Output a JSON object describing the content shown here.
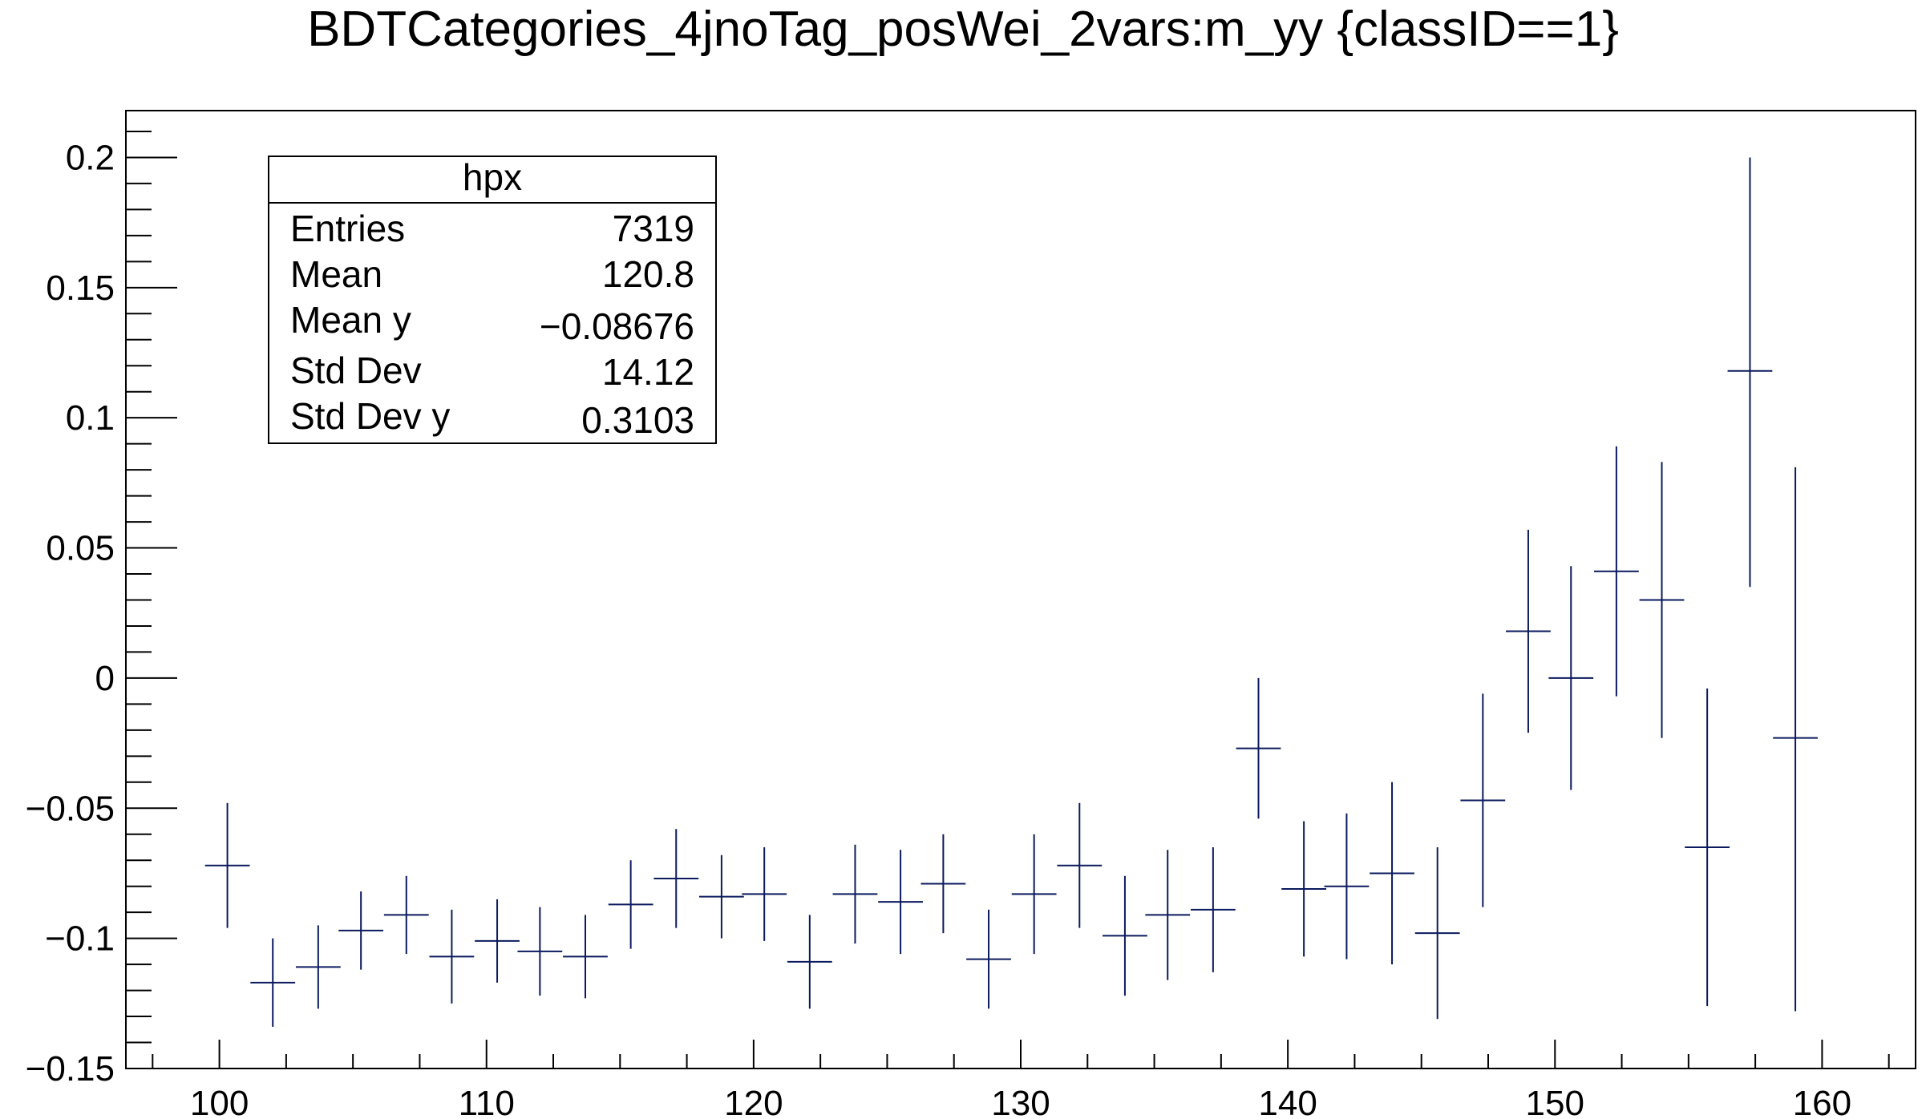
{
  "chart_data": {
    "type": "scatter",
    "title": "BDTCategories_4jnoTag_posWei_2vars:m_yy {classID==1}",
    "xlabel": "",
    "ylabel": "",
    "xlim": [
      96.5,
      163.5
    ],
    "ylim": [
      -0.15,
      0.218
    ],
    "grid": false,
    "legend": "none",
    "x_ticks": [
      100,
      110,
      120,
      130,
      140,
      150,
      160
    ],
    "x_tick_labels": [
      "100",
      "110",
      "120",
      "130",
      "140",
      "150",
      "160"
    ],
    "y_ticks": [
      -0.15,
      -0.1,
      -0.05,
      0,
      0.05,
      0.1,
      0.15,
      0.2
    ],
    "y_tick_labels": [
      "−0.15",
      "−0.1",
      "−0.05",
      "0",
      "0.05",
      "0.1",
      "0.15",
      "0.2"
    ],
    "marker_color": "#0b1a5e",
    "bin_width": 1.675,
    "series": [
      {
        "x": [
          100.3,
          102.0,
          103.7,
          105.3,
          107.0,
          108.7,
          110.4,
          112.0,
          113.7,
          115.4,
          117.1,
          118.8,
          120.4,
          122.1,
          123.8,
          125.5,
          127.1,
          128.8,
          130.5,
          132.2,
          133.9,
          135.5,
          137.2,
          138.9,
          140.6,
          142.2,
          143.9,
          145.6,
          147.3,
          149.0,
          150.6,
          152.3,
          154.0,
          155.7,
          157.3,
          159.0
        ],
        "y": [
          -0.072,
          -0.117,
          -0.111,
          -0.097,
          -0.091,
          -0.107,
          -0.101,
          -0.105,
          -0.107,
          -0.087,
          -0.077,
          -0.084,
          -0.083,
          -0.109,
          -0.083,
          -0.086,
          -0.079,
          -0.108,
          -0.083,
          -0.072,
          -0.099,
          -0.091,
          -0.089,
          -0.027,
          -0.081,
          -0.08,
          -0.075,
          -0.098,
          -0.047,
          0.018,
          0.0,
          0.041,
          0.03,
          -0.065,
          0.118,
          -0.023
        ],
        "err_low": [
          0.024,
          0.017,
          0.016,
          0.015,
          0.015,
          0.018,
          0.016,
          0.017,
          0.016,
          0.017,
          0.019,
          0.016,
          0.018,
          0.018,
          0.019,
          0.02,
          0.019,
          0.019,
          0.023,
          0.024,
          0.023,
          0.025,
          0.024,
          0.027,
          0.026,
          0.028,
          0.035,
          0.033,
          0.041,
          0.039,
          0.043,
          0.048,
          0.053,
          0.061,
          0.083,
          0.105
        ],
        "err_high": [
          0.024,
          0.017,
          0.016,
          0.015,
          0.015,
          0.018,
          0.016,
          0.017,
          0.016,
          0.017,
          0.019,
          0.016,
          0.018,
          0.018,
          0.019,
          0.02,
          0.019,
          0.019,
          0.023,
          0.024,
          0.023,
          0.025,
          0.024,
          0.027,
          0.026,
          0.028,
          0.035,
          0.033,
          0.041,
          0.039,
          0.043,
          0.048,
          0.053,
          0.061,
          0.082,
          0.104
        ]
      }
    ]
  },
  "stats_box": {
    "title": "hpx",
    "rows": [
      {
        "label": "Entries",
        "value": "7319"
      },
      {
        "label": "Mean",
        "value": "120.8"
      },
      {
        "label": "Mean y",
        "value": "−0.08676"
      },
      {
        "label": "Std Dev",
        "value": "14.12"
      },
      {
        "label": "Std Dev y",
        "value": "0.3103"
      }
    ]
  }
}
